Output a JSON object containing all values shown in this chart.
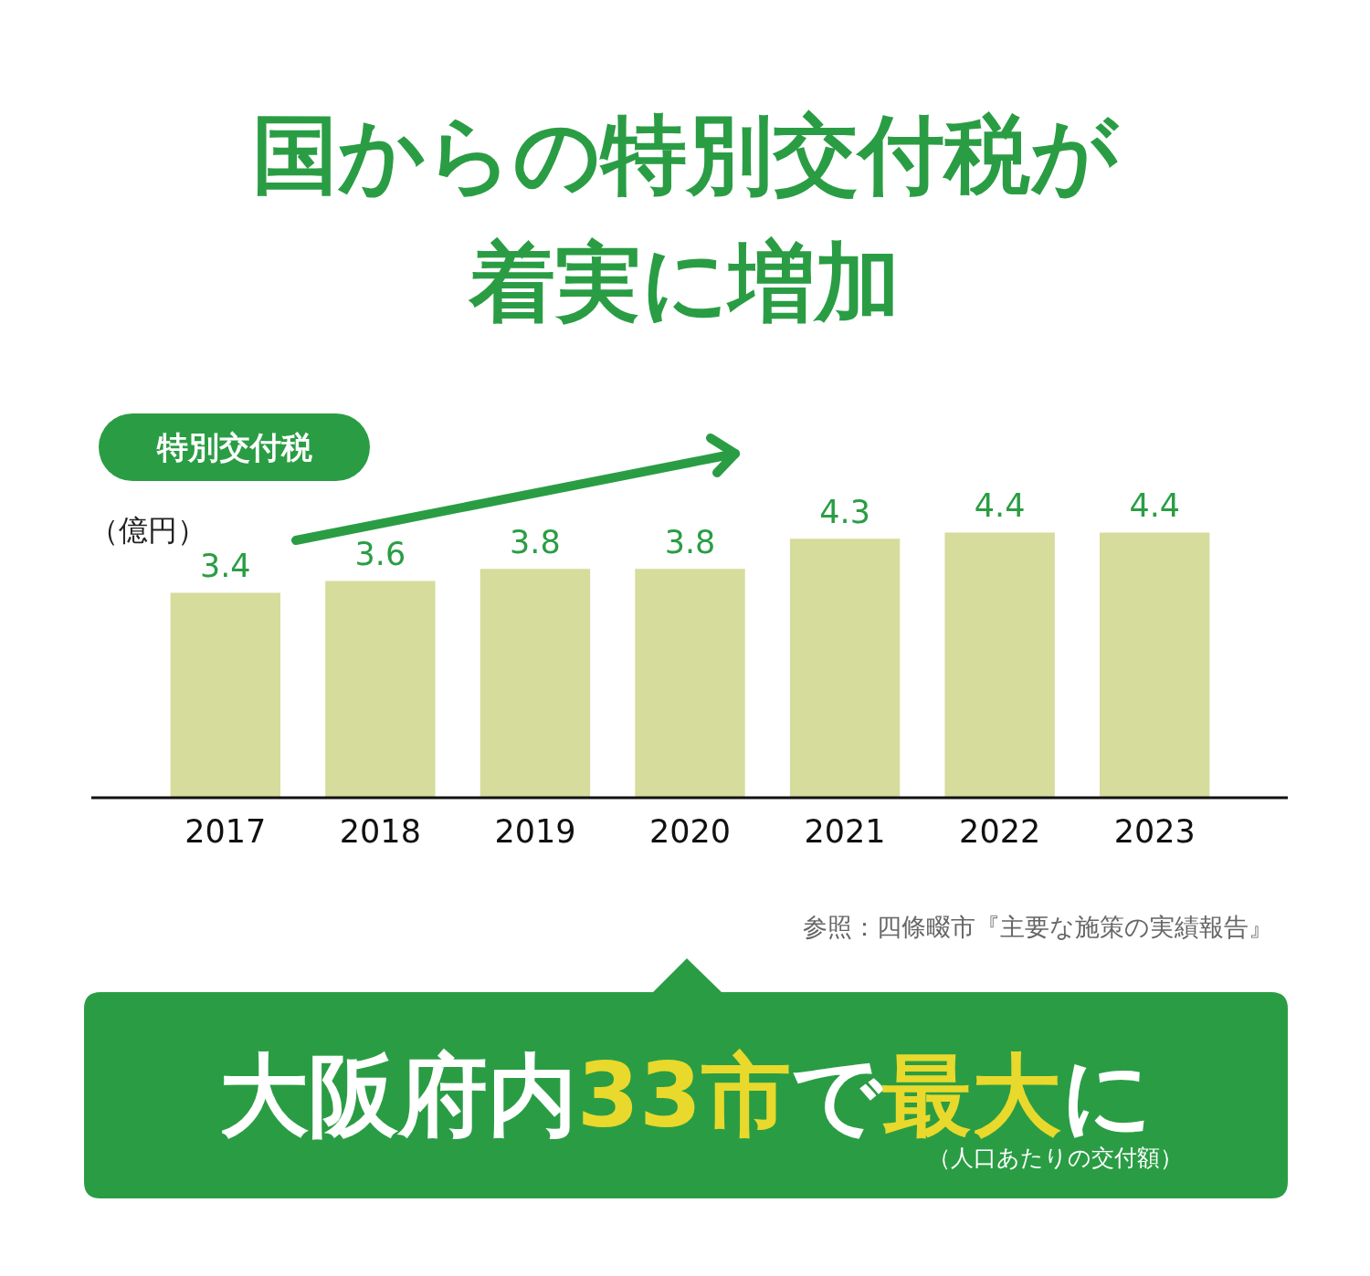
{
  "chart_data": {
    "type": "bar",
    "title": "国からの特別交付税が着実に増加",
    "subtitle": "特別交付税",
    "ylabel": "（億円）",
    "categories": [
      "2017",
      "2018",
      "2019",
      "2020",
      "2021",
      "2022",
      "2023"
    ],
    "values": [
      3.4,
      3.6,
      3.8,
      3.8,
      4.3,
      4.4,
      4.4
    ],
    "color": "#d6dc9c",
    "data_labels": true,
    "tick_labels": "x",
    "annotations": [
      "参照：四條畷市『主要な施策の実績報告』",
      "大阪府内",
      "33市",
      "で",
      "最大",
      "に",
      "（人口あたりの交付額）"
    ]
  }
}
